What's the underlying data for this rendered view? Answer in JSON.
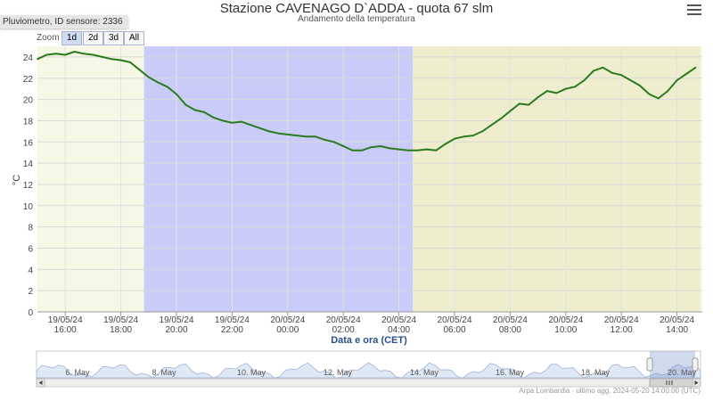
{
  "header": {
    "title": "Stazione CAVENAGO D`ADDA - quota 67 slm",
    "subtitle": "Andamento della temperatura",
    "tooltip": "Pluviometro, ID sensore: 2336",
    "menu_icon": "hamburger-menu-icon"
  },
  "zoom": {
    "label": "Zoom",
    "buttons": [
      "1d",
      "2d",
      "3d",
      "All"
    ],
    "selected": "1d"
  },
  "chart_data": {
    "type": "line",
    "title": "Stazione CAVENAGO D`ADDA - quota 67 slm",
    "subtitle": "Andamento della temperatura",
    "xlabel": "Data e ora (CET)",
    "ylabel": "°C",
    "ylim": [
      0,
      25
    ],
    "yticks": [
      0,
      2,
      4,
      6,
      8,
      10,
      12,
      14,
      16,
      18,
      20,
      22,
      24
    ],
    "grid": true,
    "series": [
      {
        "color": "#2b7a1d",
        "x": [
          "2024-05-19 15:00",
          "2024-05-19 15:20",
          "2024-05-19 15:40",
          "2024-05-19 16:00",
          "2024-05-19 16:20",
          "2024-05-19 16:40",
          "2024-05-19 17:00",
          "2024-05-19 17:20",
          "2024-05-19 17:40",
          "2024-05-19 18:00",
          "2024-05-19 18:20",
          "2024-05-19 18:40",
          "2024-05-19 19:00",
          "2024-05-19 19:20",
          "2024-05-19 19:40",
          "2024-05-19 20:00",
          "2024-05-19 20:20",
          "2024-05-19 20:40",
          "2024-05-19 21:00",
          "2024-05-19 21:20",
          "2024-05-19 21:40",
          "2024-05-19 22:00",
          "2024-05-19 22:20",
          "2024-05-19 22:40",
          "2024-05-19 23:00",
          "2024-05-19 23:20",
          "2024-05-19 23:40",
          "2024-05-20 00:00",
          "2024-05-20 00:20",
          "2024-05-20 00:40",
          "2024-05-20 01:00",
          "2024-05-20 01:20",
          "2024-05-20 01:40",
          "2024-05-20 02:00",
          "2024-05-20 02:20",
          "2024-05-20 02:40",
          "2024-05-20 03:00",
          "2024-05-20 03:20",
          "2024-05-20 03:40",
          "2024-05-20 04:00",
          "2024-05-20 04:20",
          "2024-05-20 04:40",
          "2024-05-20 05:00",
          "2024-05-20 05:20",
          "2024-05-20 05:40",
          "2024-05-20 06:00",
          "2024-05-20 06:20",
          "2024-05-20 06:40",
          "2024-05-20 07:00",
          "2024-05-20 07:20",
          "2024-05-20 07:40",
          "2024-05-20 08:00",
          "2024-05-20 08:20",
          "2024-05-20 08:40",
          "2024-05-20 09:00",
          "2024-05-20 09:20",
          "2024-05-20 09:40",
          "2024-05-20 10:00",
          "2024-05-20 10:20",
          "2024-05-20 10:40",
          "2024-05-20 11:00",
          "2024-05-20 11:20",
          "2024-05-20 11:40",
          "2024-05-20 12:00",
          "2024-05-20 12:20",
          "2024-05-20 12:40",
          "2024-05-20 13:00",
          "2024-05-20 13:20",
          "2024-05-20 13:40",
          "2024-05-20 14:00",
          "2024-05-20 14:20",
          "2024-05-20 14:40"
        ],
        "y": [
          23.8,
          24.2,
          24.3,
          24.2,
          24.5,
          24.3,
          24.2,
          24.0,
          23.8,
          23.7,
          23.5,
          22.8,
          22.1,
          21.6,
          21.2,
          20.5,
          19.5,
          19.0,
          18.8,
          18.3,
          18.0,
          17.8,
          17.9,
          17.6,
          17.3,
          17.0,
          16.8,
          16.7,
          16.6,
          16.5,
          16.5,
          16.2,
          16.0,
          15.6,
          15.2,
          15.2,
          15.5,
          15.6,
          15.4,
          15.3,
          15.2,
          15.2,
          15.3,
          15.2,
          15.8,
          16.3,
          16.5,
          16.6,
          17.0,
          17.6,
          18.2,
          18.9,
          19.6,
          19.5,
          20.2,
          20.8,
          20.6,
          21.0,
          21.2,
          21.8,
          22.7,
          23.0,
          22.5,
          22.3,
          21.8,
          21.3,
          20.5,
          20.1,
          20.8,
          21.8,
          22.4,
          23.0
        ]
      }
    ],
    "x_tick_labels": [
      {
        "date": "19/05/24",
        "time": "16:00"
      },
      {
        "date": "19/05/24",
        "time": "18:00"
      },
      {
        "date": "19/05/24",
        "time": "20:00"
      },
      {
        "date": "19/05/24",
        "time": "22:00"
      },
      {
        "date": "20/05/24",
        "time": "00:00"
      },
      {
        "date": "20/05/24",
        "time": "02:00"
      },
      {
        "date": "20/05/24",
        "time": "04:00"
      },
      {
        "date": "20/05/24",
        "time": "06:00"
      },
      {
        "date": "20/05/24",
        "time": "08:00"
      },
      {
        "date": "20/05/24",
        "time": "10:00"
      },
      {
        "date": "20/05/24",
        "time": "12:00"
      },
      {
        "date": "20/05/24",
        "time": "14:00"
      }
    ],
    "bands": [
      {
        "from": "2024-05-19 18:50",
        "to": "2024-05-20 04:30",
        "color": "#c3c6fb"
      },
      {
        "from": "2024-05-20 04:30",
        "to": "2024-05-20 14:50",
        "color": "#ececcc"
      }
    ],
    "navigator": {
      "labels": [
        "6. May",
        "8. May",
        "10. May",
        "12. May",
        "14. May",
        "16. May",
        "18. May",
        "20. May"
      ],
      "handle_icon": "range-handle-icon",
      "scrollbar_grip_icon": "grip-lines-icon"
    }
  },
  "footer": {
    "credit": "Arpa Lombardia - ultimo agg. 2024-05-20 14:00:00 (UTC)"
  }
}
